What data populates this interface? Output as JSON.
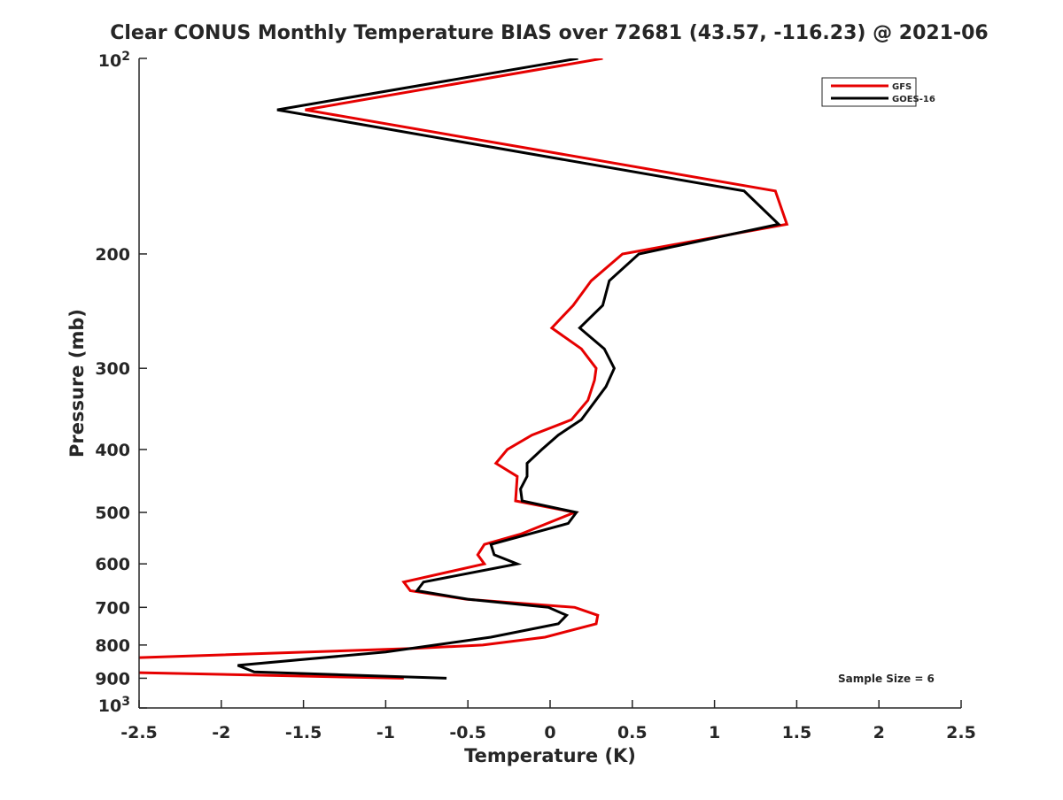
{
  "chart_data": {
    "type": "line",
    "title": "Clear CONUS Monthly Temperature BIAS over 72681 (43.57, -116.23) @ 2021-06",
    "xlabel": "Temperature (K)",
    "ylabel": "Pressure (mb)",
    "xlim": [
      -2.5,
      2.5
    ],
    "ylim": [
      100,
      1000
    ],
    "yscale": "log",
    "y_reversed": true,
    "grid": false,
    "x_ticks": [
      -2.5,
      -2,
      -1.5,
      -1,
      -0.5,
      0,
      0.5,
      1,
      1.5,
      2,
      2.5
    ],
    "x_tick_labels": [
      "-2.5",
      "-2",
      "-1.5",
      "-1",
      "-0.5",
      "0",
      "0.5",
      "1",
      "1.5",
      "2",
      "2.5"
    ],
    "y_ticks": [
      100,
      200,
      300,
      400,
      500,
      600,
      700,
      800,
      900,
      1000
    ],
    "y_tick_labels": [
      {
        "base": "10",
        "exp": "2"
      },
      {
        "text": "200"
      },
      {
        "text": "300"
      },
      {
        "text": "400"
      },
      {
        "text": "500"
      },
      {
        "text": "600"
      },
      {
        "text": "700"
      },
      {
        "text": "800"
      },
      {
        "text": "900"
      },
      {
        "base": "10",
        "exp": "3"
      }
    ],
    "legend": {
      "placement": "top-right",
      "entries": [
        "GFS",
        "GOES-16"
      ]
    },
    "annotation": "Sample Size = 6",
    "series": [
      {
        "name": "GFS",
        "color": "#e60000",
        "pressure": [
          100,
          120,
          160,
          180,
          200,
          220,
          240,
          260,
          280,
          300,
          313,
          336,
          360,
          380,
          400,
          420,
          440,
          480,
          500,
          540,
          560,
          581,
          600,
          640,
          660,
          680,
          700,
          720,
          742,
          778,
          800,
          810,
          840,
          880,
          900
        ],
        "temperature": [
          0.32,
          -1.49,
          1.37,
          1.44,
          0.44,
          0.25,
          0.14,
          0.01,
          0.19,
          0.28,
          0.27,
          0.23,
          0.13,
          -0.11,
          -0.26,
          -0.33,
          -0.2,
          -0.21,
          0.15,
          -0.18,
          -0.4,
          -0.44,
          -0.4,
          -0.89,
          -0.85,
          -0.51,
          0.15,
          0.29,
          0.28,
          -0.03,
          -0.41,
          -0.84,
          -2.7,
          -2.7,
          -0.89
        ]
      },
      {
        "name": "GOES-16",
        "color": "#000000",
        "pressure": [
          100,
          120,
          160,
          180,
          200,
          220,
          240,
          260,
          280,
          300,
          320,
          360,
          380,
          400,
          420,
          440,
          460,
          480,
          500,
          520,
          560,
          581,
          600,
          640,
          660,
          680,
          700,
          720,
          742,
          778,
          820,
          860,
          880,
          900
        ],
        "temperature": [
          0.17,
          -1.66,
          1.18,
          1.39,
          0.54,
          0.36,
          0.32,
          0.18,
          0.33,
          0.39,
          0.34,
          0.19,
          0.05,
          -0.05,
          -0.14,
          -0.14,
          -0.18,
          -0.17,
          0.16,
          0.11,
          -0.36,
          -0.34,
          -0.2,
          -0.77,
          -0.81,
          -0.5,
          -0.01,
          0.1,
          0.05,
          -0.36,
          -1.0,
          -1.9,
          -1.8,
          -0.63
        ]
      }
    ]
  }
}
